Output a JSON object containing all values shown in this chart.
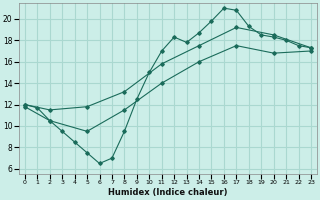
{
  "title": "",
  "xlabel": "Humidex (Indice chaleur)",
  "background_color": "#cceee8",
  "grid_color": "#aad8d0",
  "line_color": "#1a6b5a",
  "xlim": [
    -0.5,
    23.5
  ],
  "ylim": [
    5.5,
    21.5
  ],
  "yticks": [
    6,
    8,
    10,
    12,
    14,
    16,
    18,
    20
  ],
  "xticks": [
    0,
    1,
    2,
    3,
    4,
    5,
    6,
    7,
    8,
    9,
    10,
    11,
    12,
    13,
    14,
    15,
    16,
    17,
    18,
    19,
    20,
    21,
    22,
    23
  ],
  "line1_x": [
    0,
    1,
    2,
    3,
    4,
    5,
    6,
    7,
    8,
    9,
    10,
    11,
    12,
    13,
    14,
    15,
    16,
    17,
    18,
    19,
    20,
    21,
    22,
    23
  ],
  "line1_y": [
    12,
    11.7,
    10.5,
    9.5,
    8.5,
    7.5,
    6.5,
    7.0,
    9.5,
    12.5,
    15.0,
    17.0,
    18.3,
    17.8,
    18.7,
    19.8,
    21.0,
    20.8,
    19.3,
    18.5,
    18.3,
    18.0,
    17.5,
    17.3
  ],
  "line2_x": [
    0,
    2,
    5,
    8,
    11,
    14,
    17,
    20,
    23
  ],
  "line2_y": [
    12.0,
    11.5,
    11.8,
    13.2,
    15.8,
    17.5,
    19.2,
    18.5,
    17.3
  ],
  "line3_x": [
    0,
    2,
    5,
    8,
    11,
    14,
    17,
    20,
    23
  ],
  "line3_y": [
    11.8,
    10.5,
    9.5,
    11.5,
    14.0,
    16.0,
    17.5,
    16.8,
    17.0
  ]
}
